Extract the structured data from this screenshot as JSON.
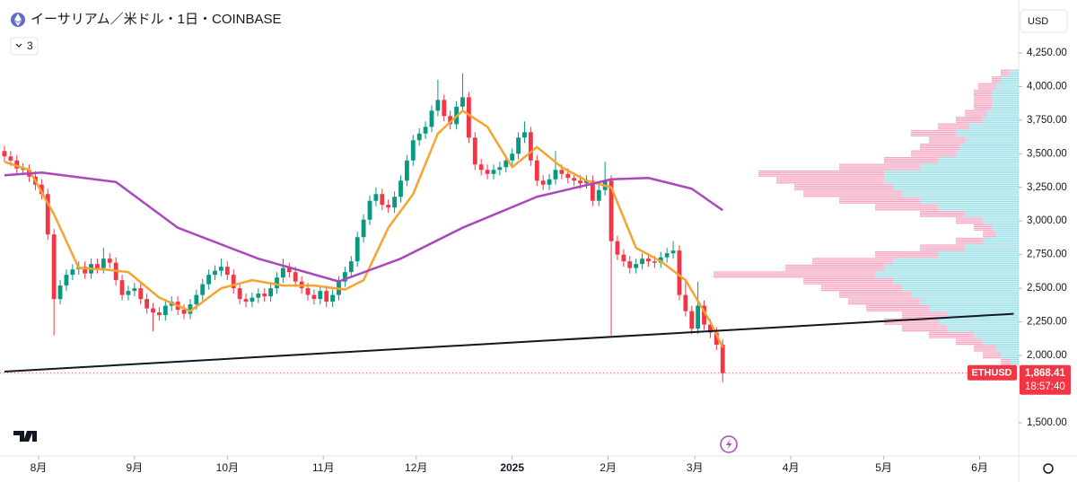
{
  "chart_data": {
    "type": "candlestick",
    "title": "イーサリアム／米ドル・1日・COINBASE",
    "indicator_count": "3",
    "currency": "USD",
    "up_color": "#089981",
    "down_color": "#f23645",
    "ylim": [
      1273,
      4643
    ],
    "yticks": [
      {
        "value": 1500,
        "label": "1,500.00"
      },
      {
        "value": 2000,
        "label": "2,000.00"
      },
      {
        "value": 2250,
        "label": "2,250.00"
      },
      {
        "value": 2500,
        "label": "2,500.00"
      },
      {
        "value": 2750,
        "label": "2,750.00"
      },
      {
        "value": 3000,
        "label": "3,000.00"
      },
      {
        "value": 3250,
        "label": "3,250.00"
      },
      {
        "value": 3500,
        "label": "3,500.00"
      },
      {
        "value": 3750,
        "label": "3,750.00"
      },
      {
        "value": 4000,
        "label": "4,000.00"
      },
      {
        "value": 4250,
        "label": "4,250.00"
      }
    ],
    "xlim": [
      -0.72,
      163.8
    ],
    "xticks": [
      {
        "value": 5.5,
        "label": "8月"
      },
      {
        "value": 21,
        "label": "9月"
      },
      {
        "value": 36,
        "label": "10月"
      },
      {
        "value": 51.5,
        "label": "11月"
      },
      {
        "value": 66.5,
        "label": "12月"
      },
      {
        "value": 82,
        "label": "2025"
      },
      {
        "value": 97.5,
        "label": "2月"
      },
      {
        "value": 111.5,
        "label": "3月"
      },
      {
        "value": 127,
        "label": "4月"
      },
      {
        "value": 142,
        "label": "5月"
      },
      {
        "value": 157.5,
        "label": "6月"
      }
    ],
    "candles": [
      [
        3520,
        3560,
        3440,
        3480
      ],
      [
        3480,
        3520,
        3410,
        3450
      ],
      [
        3450,
        3490,
        3350,
        3390
      ],
      [
        3390,
        3430,
        3340,
        3380
      ],
      [
        3380,
        3420,
        3290,
        3330
      ],
      [
        3330,
        3370,
        3230,
        3270
      ],
      [
        3270,
        3310,
        3160,
        3200
      ],
      [
        3200,
        3240,
        2860,
        2900
      ],
      [
        2900,
        2940,
        2150,
        2420
      ],
      [
        2420,
        2560,
        2380,
        2520
      ],
      [
        2520,
        2640,
        2480,
        2600
      ],
      [
        2600,
        2680,
        2560,
        2640
      ],
      [
        2640,
        2700,
        2600,
        2660
      ],
      [
        2660,
        2700,
        2570,
        2610
      ],
      [
        2610,
        2720,
        2570,
        2680
      ],
      [
        2680,
        2720,
        2610,
        2650
      ],
      [
        2650,
        2800,
        2610,
        2720
      ],
      [
        2720,
        2760,
        2650,
        2690
      ],
      [
        2690,
        2730,
        2520,
        2560
      ],
      [
        2560,
        2600,
        2410,
        2450
      ],
      [
        2450,
        2520,
        2410,
        2480
      ],
      [
        2480,
        2540,
        2440,
        2500
      ],
      [
        2500,
        2540,
        2380,
        2420
      ],
      [
        2420,
        2460,
        2310,
        2350
      ],
      [
        2350,
        2390,
        2180,
        2320
      ],
      [
        2320,
        2360,
        2260,
        2300
      ],
      [
        2300,
        2410,
        2260,
        2370
      ],
      [
        2370,
        2440,
        2330,
        2400
      ],
      [
        2400,
        2440,
        2300,
        2340
      ],
      [
        2340,
        2380,
        2270,
        2310
      ],
      [
        2310,
        2420,
        2270,
        2380
      ],
      [
        2380,
        2490,
        2340,
        2450
      ],
      [
        2450,
        2570,
        2410,
        2530
      ],
      [
        2530,
        2640,
        2490,
        2600
      ],
      [
        2600,
        2670,
        2560,
        2630
      ],
      [
        2630,
        2720,
        2590,
        2660
      ],
      [
        2660,
        2700,
        2560,
        2600
      ],
      [
        2600,
        2640,
        2460,
        2500
      ],
      [
        2500,
        2540,
        2380,
        2420
      ],
      [
        2420,
        2460,
        2360,
        2400
      ],
      [
        2400,
        2470,
        2360,
        2430
      ],
      [
        2430,
        2500,
        2390,
        2460
      ],
      [
        2460,
        2500,
        2400,
        2440
      ],
      [
        2440,
        2540,
        2400,
        2500
      ],
      [
        2500,
        2620,
        2460,
        2580
      ],
      [
        2580,
        2720,
        2540,
        2650
      ],
      [
        2650,
        2690,
        2580,
        2620
      ],
      [
        2620,
        2660,
        2510,
        2550
      ],
      [
        2550,
        2590,
        2460,
        2500
      ],
      [
        2500,
        2540,
        2410,
        2450
      ],
      [
        2450,
        2490,
        2380,
        2420
      ],
      [
        2420,
        2520,
        2380,
        2480
      ],
      [
        2480,
        2520,
        2360,
        2400
      ],
      [
        2400,
        2490,
        2360,
        2450
      ],
      [
        2450,
        2590,
        2410,
        2550
      ],
      [
        2550,
        2660,
        2510,
        2620
      ],
      [
        2620,
        2740,
        2580,
        2700
      ],
      [
        2700,
        2920,
        2660,
        2880
      ],
      [
        2880,
        3050,
        2840,
        3010
      ],
      [
        3010,
        3190,
        2970,
        3150
      ],
      [
        3150,
        3250,
        3110,
        3200
      ],
      [
        3200,
        3240,
        3080,
        3120
      ],
      [
        3120,
        3160,
        3060,
        3100
      ],
      [
        3100,
        3220,
        3060,
        3180
      ],
      [
        3180,
        3340,
        3140,
        3300
      ],
      [
        3300,
        3490,
        3260,
        3450
      ],
      [
        3450,
        3640,
        3410,
        3600
      ],
      [
        3600,
        3690,
        3560,
        3650
      ],
      [
        3650,
        3740,
        3610,
        3700
      ],
      [
        3700,
        3860,
        3660,
        3820
      ],
      [
        3820,
        4050,
        3780,
        3900
      ],
      [
        3900,
        3940,
        3740,
        3780
      ],
      [
        3780,
        3820,
        3680,
        3720
      ],
      [
        3720,
        3890,
        3680,
        3850
      ],
      [
        3850,
        4100,
        3810,
        3920
      ],
      [
        3920,
        3960,
        3580,
        3620
      ],
      [
        3620,
        3660,
        3380,
        3420
      ],
      [
        3420,
        3460,
        3340,
        3380
      ],
      [
        3380,
        3420,
        3310,
        3350
      ],
      [
        3350,
        3420,
        3310,
        3380
      ],
      [
        3380,
        3440,
        3340,
        3400
      ],
      [
        3400,
        3490,
        3360,
        3450
      ],
      [
        3450,
        3540,
        3410,
        3500
      ],
      [
        3500,
        3660,
        3460,
        3620
      ],
      [
        3620,
        3740,
        3580,
        3660
      ],
      [
        3660,
        3700,
        3410,
        3450
      ],
      [
        3450,
        3490,
        3260,
        3300
      ],
      [
        3300,
        3340,
        3230,
        3270
      ],
      [
        3270,
        3350,
        3230,
        3310
      ],
      [
        3310,
        3520,
        3270,
        3380
      ],
      [
        3380,
        3420,
        3310,
        3350
      ],
      [
        3350,
        3390,
        3280,
        3320
      ],
      [
        3320,
        3360,
        3260,
        3300
      ],
      [
        3300,
        3340,
        3240,
        3280
      ],
      [
        3280,
        3340,
        3240,
        3300
      ],
      [
        3300,
        3340,
        3110,
        3150
      ],
      [
        3150,
        3270,
        3110,
        3230
      ],
      [
        3230,
        3440,
        3190,
        3300
      ],
      [
        3300,
        3340,
        2150,
        2850
      ],
      [
        2850,
        2890,
        2710,
        2750
      ],
      [
        2750,
        2790,
        2660,
        2700
      ],
      [
        2700,
        2740,
        2610,
        2650
      ],
      [
        2650,
        2720,
        2610,
        2680
      ],
      [
        2680,
        2760,
        2640,
        2720
      ],
      [
        2720,
        2760,
        2660,
        2700
      ],
      [
        2700,
        2740,
        2650,
        2690
      ],
      [
        2690,
        2770,
        2650,
        2730
      ],
      [
        2730,
        2800,
        2690,
        2760
      ],
      [
        2760,
        2850,
        2720,
        2780
      ],
      [
        2780,
        2820,
        2410,
        2450
      ],
      [
        2450,
        2550,
        2290,
        2330
      ],
      [
        2330,
        2370,
        2160,
        2200
      ],
      [
        2200,
        2550,
        2160,
        2370
      ],
      [
        2370,
        2410,
        2190,
        2230
      ],
      [
        2230,
        2270,
        2130,
        2170
      ],
      [
        2170,
        2210,
        2040,
        2080
      ],
      [
        2080,
        2120,
        1800,
        1868.41
      ]
    ],
    "lines": [
      {
        "color": "#f7a331",
        "x": [
          0,
          4,
          8,
          12,
          16,
          20,
          25,
          30,
          35,
          40,
          45,
          50,
          55,
          58,
          62,
          66,
          70,
          74,
          78,
          82,
          86,
          90,
          94,
          98,
          102,
          106,
          110,
          114,
          116
        ],
        "values": [
          3440,
          3380,
          3050,
          2650,
          2640,
          2620,
          2430,
          2330,
          2500,
          2560,
          2520,
          2520,
          2490,
          2560,
          2950,
          3200,
          3650,
          3820,
          3700,
          3400,
          3550,
          3400,
          3300,
          3250,
          2800,
          2700,
          2560,
          2250,
          2060
        ]
      },
      {
        "color": "#ab47bc",
        "x": [
          0,
          6,
          18,
          28,
          41,
          54,
          64,
          74,
          86,
          98,
          104,
          111,
          116
        ],
        "values": [
          3340,
          3360,
          3290,
          2950,
          2720,
          2550,
          2720,
          2950,
          3180,
          3310,
          3320,
          3240,
          3080
        ]
      },
      {
        "color": "#131722",
        "x": [
          0,
          163
        ],
        "values": [
          1880,
          2310
        ]
      }
    ],
    "last_price": {
      "value": 1868.41,
      "label": "1,868.41",
      "countdown": "18:57:40",
      "symbol": "ETHUSD"
    },
    "volume_profile": {
      "prices": [
        1950,
        2000,
        2050,
        2100,
        2150,
        2200,
        2250,
        2300,
        2350,
        2400,
        2450,
        2500,
        2550,
        2600,
        2650,
        2700,
        2750,
        2800,
        2850,
        2900,
        2950,
        3000,
        3050,
        3100,
        3150,
        3200,
        3250,
        3300,
        3350,
        3400,
        3450,
        3500,
        3550,
        3600,
        3650,
        3700,
        3750,
        3800,
        3850,
        3900,
        3950,
        4000,
        4050,
        4100
      ],
      "up": [
        10,
        20,
        25,
        40,
        50,
        80,
        90,
        80,
        100,
        110,
        120,
        130,
        140,
        160,
        150,
        140,
        90,
        60,
        40,
        25,
        30,
        40,
        60,
        90,
        110,
        130,
        140,
        150,
        150,
        110,
        90,
        70,
        65,
        60,
        70,
        55,
        40,
        35,
        30,
        30,
        30,
        25,
        20,
        10
      ],
      "down": [
        10,
        20,
        25,
        30,
        50,
        50,
        60,
        50,
        70,
        80,
        80,
        90,
        100,
        180,
        110,
        90,
        70,
        50,
        30,
        15,
        20,
        30,
        50,
        70,
        90,
        110,
        110,
        120,
        140,
        90,
        60,
        50,
        45,
        40,
        50,
        35,
        30,
        25,
        20,
        20,
        20,
        20,
        10,
        10
      ],
      "up_color": "#7fd7e0",
      "down_color": "#f48fb1"
    }
  }
}
